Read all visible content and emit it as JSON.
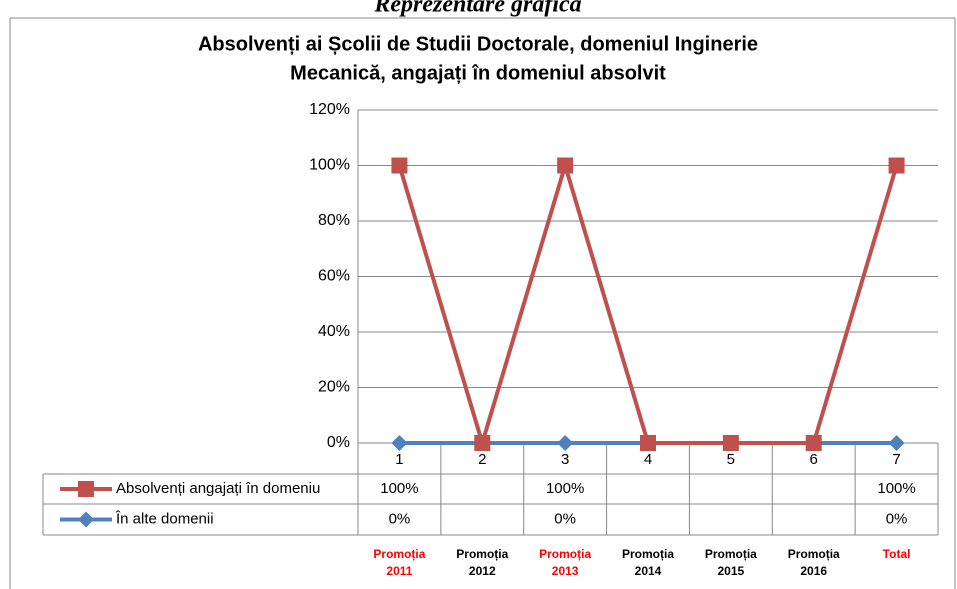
{
  "chart_data": {
    "type": "line",
    "page_heading": "Reprezentare grafică",
    "title_lines": [
      "Absolvenți ai Școlii de Studii Doctorale, domeniul Inginerie",
      "Mecanică, angajați în domeniul absolvit"
    ],
    "categories": [
      "1",
      "2",
      "3",
      "4",
      "5",
      "6",
      "7"
    ],
    "group_labels": [
      "Promoția 2011",
      "Promoția 2012",
      "Promoția 2013",
      "Promoția 2014",
      "Promoția 2015",
      "Promoția 2016",
      "Total"
    ],
    "group_label_colors": [
      "#ff0000",
      "#000000",
      "#ff0000",
      "#000000",
      "#000000",
      "#000000",
      "#ff0000"
    ],
    "series": [
      {
        "name": "Absolvenți angajați în domeniu",
        "color": "#c0504d",
        "marker": "square",
        "values": [
          100,
          0,
          100,
          0,
          0,
          0,
          100
        ],
        "value_labels": [
          "100%",
          null,
          "100%",
          null,
          null,
          null,
          "100%"
        ]
      },
      {
        "name": "În alte domenii",
        "color": "#4f81bd",
        "marker": "diamond",
        "values": [
          0,
          0,
          0,
          0,
          0,
          0,
          0
        ],
        "value_labels": [
          "0%",
          null,
          "0%",
          null,
          null,
          null,
          "0%"
        ]
      }
    ],
    "ylim": [
      0,
      120
    ],
    "yticks": [
      {
        "value": 0,
        "label": "0%"
      },
      {
        "value": 20,
        "label": "20%"
      },
      {
        "value": 40,
        "label": "40%"
      },
      {
        "value": 60,
        "label": "60%"
      },
      {
        "value": 80,
        "label": "80%"
      },
      {
        "value": 100,
        "label": "100%"
      },
      {
        "value": 120,
        "label": "120%"
      }
    ],
    "grid": true
  }
}
